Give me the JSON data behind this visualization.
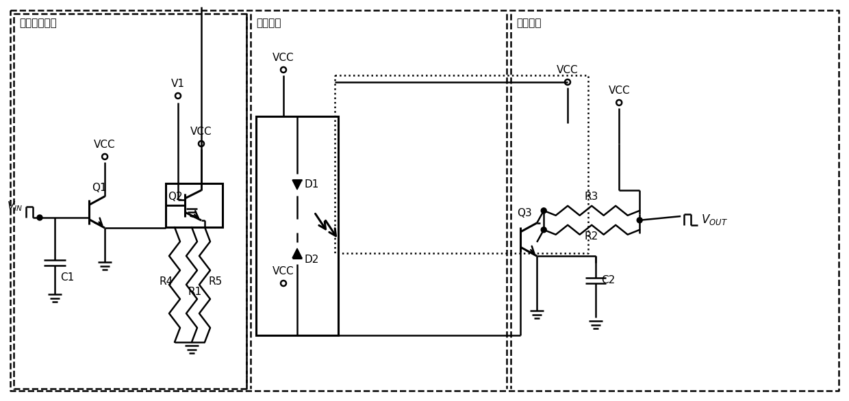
{
  "bg_color": "#ffffff",
  "line_color": "#000000",
  "lw": 1.8,
  "lw_thick": 2.2,
  "fig_width": 12.4,
  "fig_height": 5.86,
  "labels": {
    "input_circuit": "输入控制电路",
    "opto_circuit": "光耦电路",
    "output_circuit": "输出电路",
    "VCC": "VCC",
    "V1": "V1",
    "Q1": "Q1",
    "Q2": "Q2",
    "Q3": "Q3",
    "D1": "D1",
    "D2": "D2",
    "C1": "C1",
    "C2": "C2",
    "R1": "R1",
    "R2": "R2",
    "R3": "R3",
    "R4": "R4",
    "R5": "R5",
    "VIN": "V_{IN}",
    "VOUT": "V_{OUT}"
  }
}
